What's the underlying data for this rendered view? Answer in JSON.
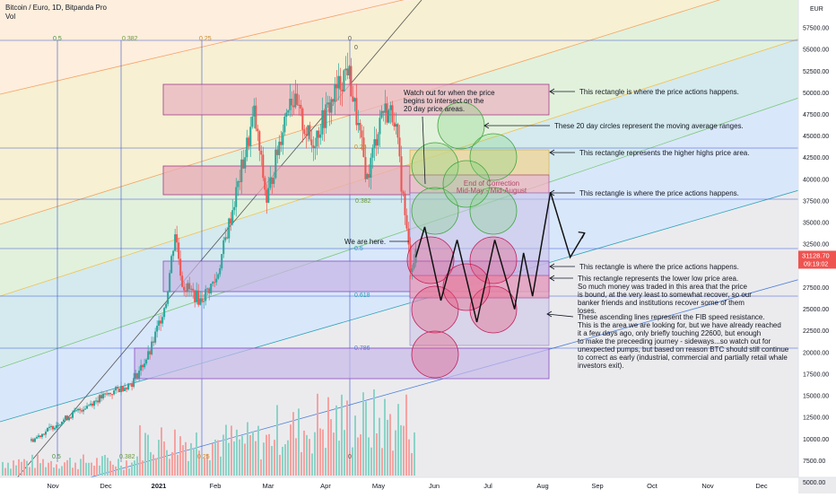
{
  "header": {
    "symbol_line": "Bitcoin / Euro, 1D, Bitpanda Pro",
    "indicator_line": "Vol"
  },
  "price_axis": {
    "currency": "EUR",
    "ticks": [
      "57500.00",
      "55000.00",
      "52500.00",
      "50000.00",
      "47500.00",
      "45000.00",
      "42500.00",
      "40000.00",
      "37500.00",
      "35000.00",
      "32500.00",
      "30000.00",
      "27500.00",
      "25000.00",
      "22500.00",
      "20000.00",
      "17500.00",
      "15000.00",
      "12500.00",
      "10000.00",
      "7500.00",
      "5000.00"
    ],
    "current_price": "31128.70",
    "countdown": "09:19:02"
  },
  "time_axis": {
    "ticks": [
      "Nov",
      "Dec",
      "2021",
      "Feb",
      "Mar",
      "Apr",
      "May",
      "Jun",
      "Jul",
      "Aug",
      "Sep",
      "Oct",
      "Nov",
      "Dec"
    ]
  },
  "fib_labels": {
    "top": [
      "0.5",
      "0.382",
      "0.25",
      "0",
      "0"
    ],
    "bottom": [
      "0.5",
      "0.382",
      "0.25",
      "0"
    ],
    "right": [
      "0.382",
      "0.5",
      "0.618",
      "0.786",
      "0.25"
    ]
  },
  "annotations": {
    "watch_out": [
      "Watch out for when the price",
      "begins to intersect on the",
      "20 day price areas."
    ],
    "end_correction": [
      "End of Correction",
      "Mid-May - Mid-August"
    ],
    "we_are_here": "We are here.",
    "note1": "This rectangle is where the price actions happens.",
    "note2": "These 20 day circles represent the moving average ranges.",
    "note3": "This rectangle represents the higher highs price area.",
    "note4": "This rectangle is where the price actions happens.",
    "note5": "This rectangle is where the price actions happens.",
    "note6": [
      "This rectangle represents the lower low price area.",
      "So much money was traded in this area that the price",
      "is bound, at the very least to somewhat recover, so our",
      "banker friends and institutions recover some of them",
      "loses."
    ],
    "note7": [
      "These ascending lines represent the FIB speed resistance.",
      "This is the area we are looking for, but we have already reached",
      "it a few days ago, only briefly touching 22600, but enough",
      "to make the preceeding journey - sideways...so watch out for",
      "unexpected pumps, but based on reason BTC should still continue",
      "to correct as early (industrial, commercial and partially retail whale",
      "investors exit)."
    ]
  },
  "colors": {
    "up": "#26a69a",
    "down": "#ef5350",
    "rect_red": "#f4a5a5",
    "rect_purple": "#c8b6e2",
    "circle_green": "#7fd37f",
    "circle_pink": "#e8537a"
  },
  "chart_data": {
    "type": "candlestick",
    "title": "Bitcoin / Euro, 1D, Bitpanda Pro",
    "y_unit": "EUR",
    "ylim": [
      5000,
      58000
    ],
    "price_path": [
      {
        "x": "2020-10-20",
        "y": 9800
      },
      {
        "x": "2020-11-05",
        "y": 12000
      },
      {
        "x": "2020-11-25",
        "y": 14500
      },
      {
        "x": "2020-12-15",
        "y": 16500
      },
      {
        "x": "2020-12-25",
        "y": 20000
      },
      {
        "x": "2021-01-03",
        "y": 26000
      },
      {
        "x": "2021-01-08",
        "y": 34000
      },
      {
        "x": "2021-01-12",
        "y": 28000
      },
      {
        "x": "2021-01-22",
        "y": 26000
      },
      {
        "x": "2021-01-31",
        "y": 28500
      },
      {
        "x": "2021-02-10",
        "y": 37500
      },
      {
        "x": "2021-02-21",
        "y": 47500
      },
      {
        "x": "2021-02-28",
        "y": 37500
      },
      {
        "x": "2021-03-13",
        "y": 50000
      },
      {
        "x": "2021-03-25",
        "y": 44000
      },
      {
        "x": "2021-04-14",
        "y": 53000
      },
      {
        "x": "2021-04-25",
        "y": 40000
      },
      {
        "x": "2021-05-03",
        "y": 48000
      },
      {
        "x": "2021-05-10",
        "y": 47500
      },
      {
        "x": "2021-05-19",
        "y": 30000
      },
      {
        "x": "2021-05-22",
        "y": 31128.7
      }
    ],
    "projection": [
      {
        "x": "2021-05-22",
        "y": 31000
      },
      {
        "x": "2021-05-27",
        "y": 34500
      },
      {
        "x": "2021-06-05",
        "y": 26000
      },
      {
        "x": "2021-06-14",
        "y": 33000
      },
      {
        "x": "2021-06-25",
        "y": 23500
      },
      {
        "x": "2021-07-05",
        "y": 33000
      },
      {
        "x": "2021-07-16",
        "y": 25000
      },
      {
        "x": "2021-07-21",
        "y": 31500
      },
      {
        "x": "2021-07-26",
        "y": 26500
      },
      {
        "x": "2021-08-05",
        "y": 38500
      },
      {
        "x": "2021-08-16",
        "y": 31000
      },
      {
        "x": "2021-08-24",
        "y": 33800
      }
    ],
    "rectangles": [
      {
        "from": "2021-01-07",
        "to": "2021-08-05",
        "low": 46500,
        "high": 50000,
        "color": "red"
      },
      {
        "from": "2021-01-07",
        "to": "2021-05-18",
        "low": 37000,
        "high": 40500,
        "color": "red"
      },
      {
        "from": "2021-05-18",
        "to": "2021-08-05",
        "low": 40000,
        "high": 42500,
        "color": "yellow"
      },
      {
        "from": "2021-01-07",
        "to": "2021-08-05",
        "low": 25800,
        "high": 29500,
        "color": "purple"
      },
      {
        "from": "2020-12-20",
        "to": "2021-08-05",
        "low": 15500,
        "high": 19500,
        "color": "purple"
      }
    ]
  }
}
